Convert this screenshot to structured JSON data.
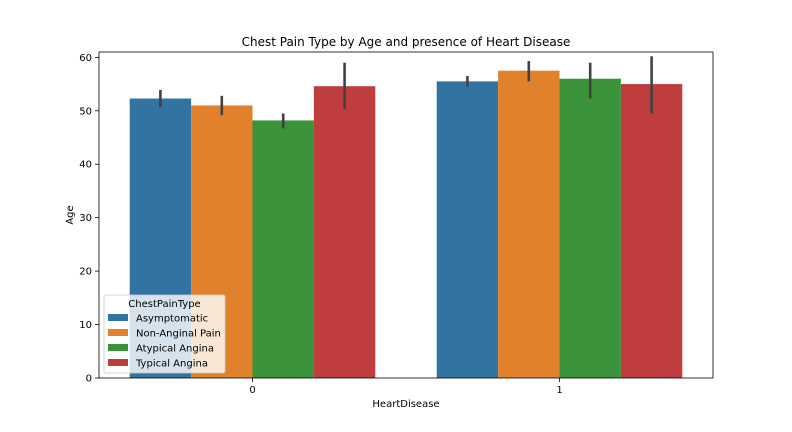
{
  "chart_data": {
    "type": "bar",
    "title": "Chest Pain Type by Age and presence of Heart Disease",
    "xlabel": "HeartDisease",
    "ylabel": "Age",
    "categories": [
      "0",
      "1"
    ],
    "ylim": [
      0,
      61
    ],
    "yticks": [
      0,
      10,
      20,
      30,
      40,
      50,
      60
    ],
    "grid": false,
    "legend": {
      "title": "ChestPainType",
      "position": "lower-left"
    },
    "series": [
      {
        "name": "Asymptomatic",
        "color": "#3274a1",
        "values": [
          52.3,
          55.5
        ],
        "ci_low": [
          50.7,
          54.5
        ],
        "ci_high": [
          53.9,
          56.5
        ]
      },
      {
        "name": "Non-Anginal Pain",
        "color": "#e1812c",
        "values": [
          51.0,
          57.5
        ],
        "ci_low": [
          49.2,
          55.5
        ],
        "ci_high": [
          52.8,
          59.3
        ]
      },
      {
        "name": "Atypical Angina",
        "color": "#3a923a",
        "values": [
          48.2,
          56.0
        ],
        "ci_low": [
          46.7,
          52.3
        ],
        "ci_high": [
          49.5,
          59.0
        ]
      },
      {
        "name": "Typical Angina",
        "color": "#c03d3e",
        "values": [
          54.6,
          55.0
        ],
        "ci_low": [
          50.3,
          49.5
        ],
        "ci_high": [
          59.0,
          60.2
        ]
      }
    ]
  }
}
